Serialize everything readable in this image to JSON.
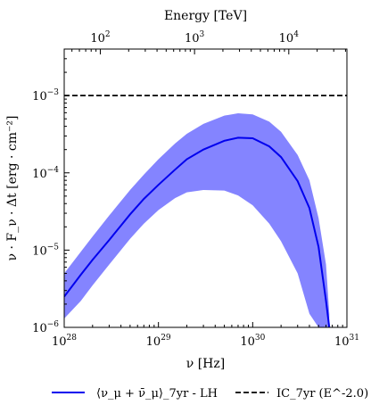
{
  "chart_data": {
    "type": "line",
    "xscale": "log",
    "yscale": "log",
    "xlim": [
      1e+28,
      1e+31
    ],
    "ylim": [
      1e-06,
      0.004
    ],
    "top_xlim_TeV": [
      41.4,
      41400
    ],
    "xlabel": "ν [Hz]",
    "ylabel": "ν · F_ν · Δt [erg · cm⁻²]",
    "top_xlabel": "Energy [TeV]",
    "x_tick_labels": [
      "10^28",
      "10^29",
      "10^30",
      "10^31"
    ],
    "y_tick_labels": [
      "10^-6",
      "10^-5",
      "10^-4",
      "10^-3"
    ],
    "top_tick_labels": [
      "10^2",
      "10^3",
      "10^4"
    ],
    "grid": false,
    "legend_position": "bottom, below plot",
    "series": [
      {
        "name": "⟨ν_μ + ν̄_μ⟩_7yr - LH",
        "style": "solid",
        "color": "#0000ee",
        "band_color": "#7777ff",
        "x": [
          1e+28,
          1.5e+28,
          2e+28,
          3e+28,
          5e+28,
          7e+28,
          1e+29,
          1.5e+29,
          2e+29,
          3e+29,
          5e+29,
          7e+29,
          1e+30,
          1.5e+30,
          2e+30,
          3e+30,
          4e+30,
          5e+30,
          6e+30,
          6.5e+30
        ],
        "y": [
          2.5e-06,
          4.8e-06,
          7.5e-06,
          1.35e-05,
          2.9e-05,
          4.6e-05,
          7e-05,
          0.00011,
          0.00015,
          0.0002,
          0.00026,
          0.000285,
          0.00028,
          0.00022,
          0.00016,
          7.8e-05,
          3.5e-05,
          1.1e-05,
          2.2e-06,
          1e-06
        ],
        "y_upper": [
          5e-06,
          9.5e-06,
          1.5e-05,
          2.8e-05,
          6e-05,
          9.5e-05,
          0.00015,
          0.00024,
          0.00032,
          0.00043,
          0.00055,
          0.00059,
          0.00057,
          0.00046,
          0.00034,
          0.00017,
          8e-05,
          2.6e-05,
          6.5e-06,
          1.5e-06
        ],
        "y_lower": [
          1.3e-06,
          2.2e-06,
          3.5e-06,
          6.5e-06,
          1.4e-05,
          2.2e-05,
          3.3e-05,
          4.7e-05,
          5.6e-05,
          6e-05,
          5.9e-05,
          5.1e-05,
          3.8e-05,
          2.2e-05,
          1.3e-05,
          5e-06,
          1.5e-06,
          1e-06,
          1e-06,
          1e-06
        ]
      },
      {
        "name": "IC_7yr (E^-2.0)",
        "style": "dashed",
        "color": "#000000",
        "x": [
          1e+28,
          1e+31
        ],
        "y": [
          0.001,
          0.001
        ]
      }
    ]
  }
}
